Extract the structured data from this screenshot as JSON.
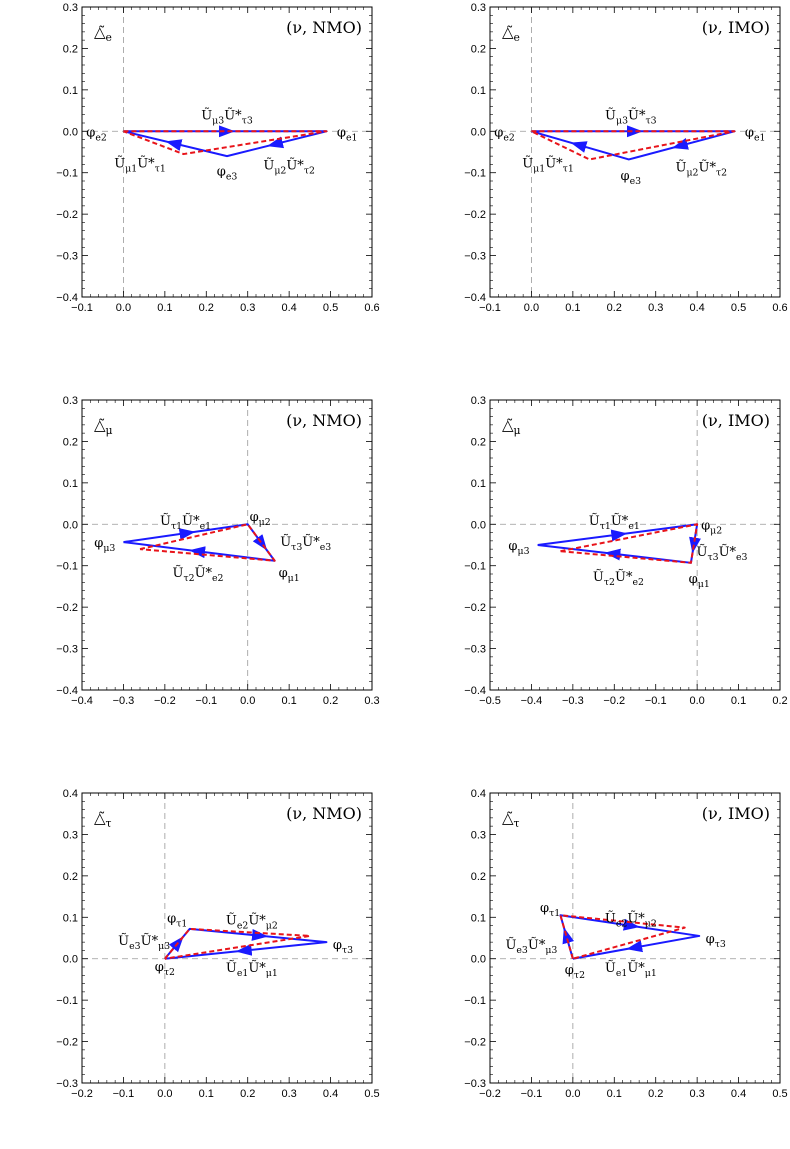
{
  "chart_data": [
    {
      "type": "line",
      "panel": "top-left",
      "label": "△̃_e",
      "annotation": "(ν, NMO)",
      "xlim": [
        -0.1,
        0.6
      ],
      "ylim": [
        -0.4,
        0.3
      ],
      "xticks": [
        -0.1,
        0.0,
        0.1,
        0.2,
        0.3,
        0.4,
        0.5,
        0.6
      ],
      "yticks": [
        -0.4,
        -0.3,
        -0.2,
        -0.1,
        0.0,
        0.1,
        0.2,
        0.3
      ],
      "xtick_labels": [
        "−0.1",
        "0.0",
        "0.1",
        "0.2",
        "0.3",
        "0.4",
        "0.5",
        "0.6"
      ],
      "ytick_labels": [
        "−0.4",
        "−0.3",
        "−0.2",
        "−0.1",
        "0.0",
        "0.1",
        "0.2",
        "0.3"
      ],
      "grid": false,
      "series": [
        {
          "style": "solid",
          "color": "#1a1aff",
          "points": [
            [
              0.0,
              0.0
            ],
            [
              0.49,
              0.0
            ],
            [
              0.25,
              -0.06
            ],
            [
              0.0,
              0.0
            ]
          ]
        },
        {
          "style": "dashed",
          "color": "#e8141a",
          "points": [
            [
              0.0,
              0.0
            ],
            [
              0.49,
              0.0
            ],
            [
              0.145,
              -0.055
            ],
            [
              0.0,
              0.0
            ]
          ]
        }
      ],
      "labels": [
        {
          "text": "φ_e2",
          "x": -0.065,
          "y": 0.0
        },
        {
          "text": "φ_e1",
          "x": 0.54,
          "y": 0.0
        },
        {
          "text": "φ_e3",
          "x": 0.25,
          "y": -0.095
        },
        {
          "text": "Ũ_μ3Ũ*_τ3",
          "x": 0.25,
          "y": 0.04
        },
        {
          "text": "Ũ_μ1Ũ*_τ1",
          "x": 0.04,
          "y": -0.075
        },
        {
          "text": "Ũ_μ2Ũ*_τ2",
          "x": 0.4,
          "y": -0.08
        }
      ]
    },
    {
      "type": "line",
      "panel": "top-right",
      "label": "△̃_e",
      "annotation": "(ν, IMO)",
      "xlim": [
        -0.1,
        0.6
      ],
      "ylim": [
        -0.4,
        0.3
      ],
      "xticks": [
        -0.1,
        0.0,
        0.1,
        0.2,
        0.3,
        0.4,
        0.5,
        0.6
      ],
      "yticks": [
        -0.4,
        -0.3,
        -0.2,
        -0.1,
        0.0,
        0.1,
        0.2,
        0.3
      ],
      "xtick_labels": [
        "−0.1",
        "0.0",
        "0.1",
        "0.2",
        "0.3",
        "0.4",
        "0.5",
        "0.6"
      ],
      "ytick_labels": [
        "−0.4",
        "−0.3",
        "−0.2",
        "−0.1",
        "0.0",
        "0.1",
        "0.2",
        "0.3"
      ],
      "grid": false,
      "series": [
        {
          "style": "solid",
          "color": "#1a1aff",
          "points": [
            [
              0.0,
              0.0
            ],
            [
              0.49,
              0.0
            ],
            [
              0.235,
              -0.068
            ],
            [
              0.0,
              0.0
            ]
          ]
        },
        {
          "style": "dashed",
          "color": "#e8141a",
          "points": [
            [
              0.0,
              0.0
            ],
            [
              0.49,
              0.0
            ],
            [
              0.14,
              -0.068
            ],
            [
              0.0,
              0.0
            ]
          ]
        }
      ],
      "labels": [
        {
          "text": "φ_e2",
          "x": -0.065,
          "y": 0.0
        },
        {
          "text": "φ_e1",
          "x": 0.54,
          "y": 0.0
        },
        {
          "text": "φ_e3",
          "x": 0.24,
          "y": -0.105
        },
        {
          "text": "Ũ_μ3Ũ*_τ3",
          "x": 0.24,
          "y": 0.04
        },
        {
          "text": "Ũ_μ1Ũ*_τ1",
          "x": 0.04,
          "y": -0.075
        },
        {
          "text": "Ũ_μ2Ũ*_τ2",
          "x": 0.41,
          "y": -0.085
        }
      ]
    },
    {
      "type": "line",
      "panel": "middle-left",
      "label": "△̃_μ",
      "annotation": "(ν, NMO)",
      "xlim": [
        -0.4,
        0.3
      ],
      "ylim": [
        -0.4,
        0.3
      ],
      "xticks": [
        -0.4,
        -0.3,
        -0.2,
        -0.1,
        0.0,
        0.1,
        0.2,
        0.3
      ],
      "yticks": [
        -0.4,
        -0.3,
        -0.2,
        -0.1,
        0.0,
        0.1,
        0.2,
        0.3
      ],
      "xtick_labels": [
        "−0.4",
        "−0.3",
        "−0.2",
        "−0.1",
        "0.0",
        "0.1",
        "0.2",
        "0.3"
      ],
      "ytick_labels": [
        "−0.4",
        "−0.3",
        "−0.2",
        "−0.1",
        "0.0",
        "0.1",
        "0.2",
        "0.3"
      ],
      "grid": false,
      "series": [
        {
          "style": "solid",
          "color": "#1a1aff",
          "points": [
            [
              -0.3,
              -0.043
            ],
            [
              0.0,
              0.0
            ],
            [
              0.065,
              -0.088
            ],
            [
              -0.3,
              -0.043
            ]
          ]
        },
        {
          "style": "dashed",
          "color": "#e8141a",
          "points": [
            [
              -0.26,
              -0.06
            ],
            [
              0.0,
              0.0
            ],
            [
              0.065,
              -0.088
            ],
            [
              -0.26,
              -0.06
            ]
          ]
        }
      ],
      "labels": [
        {
          "text": "φ_μ3",
          "x": -0.345,
          "y": -0.043
        },
        {
          "text": "φ_μ2",
          "x": 0.03,
          "y": 0.02
        },
        {
          "text": "φ_μ1",
          "x": 0.1,
          "y": -0.115
        },
        {
          "text": "Ũ_τ1Ũ*_e1",
          "x": -0.15,
          "y": 0.01
        },
        {
          "text": "Ũ_τ3Ũ*_e3",
          "x": 0.14,
          "y": -0.04
        },
        {
          "text": "Ũ_τ2Ũ*_e2",
          "x": -0.12,
          "y": -0.115
        }
      ]
    },
    {
      "type": "line",
      "panel": "middle-right",
      "label": "△̃_μ",
      "annotation": "(ν, IMO)",
      "xlim": [
        -0.5,
        0.2
      ],
      "ylim": [
        -0.4,
        0.3
      ],
      "xticks": [
        -0.5,
        -0.4,
        -0.3,
        -0.2,
        -0.1,
        0.0,
        0.1,
        0.2
      ],
      "yticks": [
        -0.4,
        -0.3,
        -0.2,
        -0.1,
        0.0,
        0.1,
        0.2,
        0.3
      ],
      "xtick_labels": [
        "−0.5",
        "−0.4",
        "−0.3",
        "−0.2",
        "−0.1",
        "0.0",
        "0.1",
        "0.2"
      ],
      "ytick_labels": [
        "−0.4",
        "−0.3",
        "−0.2",
        "−0.1",
        "0.0",
        "0.1",
        "0.2",
        "0.3"
      ],
      "grid": false,
      "series": [
        {
          "style": "solid",
          "color": "#1a1aff",
          "points": [
            [
              -0.385,
              -0.05
            ],
            [
              0.0,
              0.0
            ],
            [
              -0.015,
              -0.093
            ],
            [
              -0.385,
              -0.05
            ]
          ]
        },
        {
          "style": "dashed",
          "color": "#e8141a",
          "points": [
            [
              -0.33,
              -0.065
            ],
            [
              0.0,
              0.0
            ],
            [
              -0.015,
              -0.093
            ],
            [
              -0.33,
              -0.065
            ]
          ]
        }
      ],
      "labels": [
        {
          "text": "φ_μ3",
          "x": -0.43,
          "y": -0.05
        },
        {
          "text": "φ_μ2",
          "x": 0.035,
          "y": 0.0
        },
        {
          "text": "φ_μ1",
          "x": 0.005,
          "y": -0.13
        },
        {
          "text": "Ũ_τ1Ũ*_e1",
          "x": -0.2,
          "y": 0.01
        },
        {
          "text": "Ũ_τ3Ũ*_e3",
          "x": 0.06,
          "y": -0.065
        },
        {
          "text": "Ũ_τ2Ũ*_e2",
          "x": -0.19,
          "y": -0.125
        }
      ]
    },
    {
      "type": "line",
      "panel": "bottom-left",
      "label": "△̃_τ",
      "annotation": "(ν, NMO)",
      "xlim": [
        -0.2,
        0.5
      ],
      "ylim": [
        -0.3,
        0.4
      ],
      "xticks": [
        -0.2,
        -0.1,
        0.0,
        0.1,
        0.2,
        0.3,
        0.4,
        0.5
      ],
      "yticks": [
        -0.3,
        -0.2,
        -0.1,
        0.0,
        0.1,
        0.2,
        0.3,
        0.4
      ],
      "xtick_labels": [
        "−0.2",
        "−0.1",
        "0.0",
        "0.1",
        "0.2",
        "0.3",
        "0.4",
        "0.5"
      ],
      "ytick_labels": [
        "−0.3",
        "−0.2",
        "−0.1",
        "0.0",
        "0.1",
        "0.2",
        "0.3",
        "0.4"
      ],
      "grid": false,
      "series": [
        {
          "style": "solid",
          "color": "#1a1aff",
          "points": [
            [
              0.0,
              0.0
            ],
            [
              0.06,
              0.072
            ],
            [
              0.39,
              0.04
            ],
            [
              0.0,
              0.0
            ]
          ]
        },
        {
          "style": "dashed",
          "color": "#e8141a",
          "points": [
            [
              0.0,
              0.0
            ],
            [
              0.06,
              0.072
            ],
            [
              0.35,
              0.055
            ],
            [
              0.0,
              0.0
            ]
          ]
        }
      ],
      "labels": [
        {
          "text": "φ_τ2",
          "x": 0.0,
          "y": -0.018
        },
        {
          "text": "φ_τ1",
          "x": 0.03,
          "y": 0.1
        },
        {
          "text": "φ_τ3",
          "x": 0.43,
          "y": 0.035
        },
        {
          "text": "Ũ_e3Ũ*_μ3",
          "x": -0.05,
          "y": 0.045
        },
        {
          "text": "Ũ_e2Ũ*_μ2",
          "x": 0.21,
          "y": 0.095
        },
        {
          "text": "Ũ_e1Ũ*_μ1",
          "x": 0.21,
          "y": -0.02
        }
      ]
    },
    {
      "type": "line",
      "panel": "bottom-right",
      "label": "△̃_τ",
      "annotation": "(ν, IMO)",
      "xlim": [
        -0.2,
        0.5
      ],
      "ylim": [
        -0.3,
        0.4
      ],
      "xticks": [
        -0.2,
        -0.1,
        0.0,
        0.1,
        0.2,
        0.3,
        0.4,
        0.5
      ],
      "yticks": [
        -0.3,
        -0.2,
        -0.1,
        0.0,
        0.1,
        0.2,
        0.3,
        0.4
      ],
      "xtick_labels": [
        "−0.2",
        "−0.1",
        "0.0",
        "0.1",
        "0.2",
        "0.3",
        "0.4",
        "0.5"
      ],
      "ytick_labels": [
        "−0.3",
        "−0.2",
        "−0.1",
        "0.0",
        "0.1",
        "0.2",
        "0.3",
        "0.4"
      ],
      "grid": false,
      "series": [
        {
          "style": "solid",
          "color": "#1a1aff",
          "points": [
            [
              0.0,
              0.0
            ],
            [
              -0.03,
              0.105
            ],
            [
              0.305,
              0.055
            ],
            [
              0.0,
              0.0
            ]
          ]
        },
        {
          "style": "dashed",
          "color": "#e8141a",
          "points": [
            [
              0.0,
              0.0
            ],
            [
              -0.03,
              0.105
            ],
            [
              0.27,
              0.075
            ],
            [
              0.0,
              0.0
            ]
          ]
        }
      ],
      "labels": [
        {
          "text": "φ_τ2",
          "x": 0.005,
          "y": -0.025
        },
        {
          "text": "φ_τ1",
          "x": -0.055,
          "y": 0.125
        },
        {
          "text": "φ_τ3",
          "x": 0.345,
          "y": 0.05
        },
        {
          "text": "Ũ_e3Ũ*_μ3",
          "x": -0.1,
          "y": 0.035
        },
        {
          "text": "Ũ_e2Ũ*_μ2",
          "x": 0.14,
          "y": 0.1
        },
        {
          "text": "Ũ_e1Ũ*_μ1",
          "x": 0.14,
          "y": -0.02
        }
      ]
    }
  ]
}
